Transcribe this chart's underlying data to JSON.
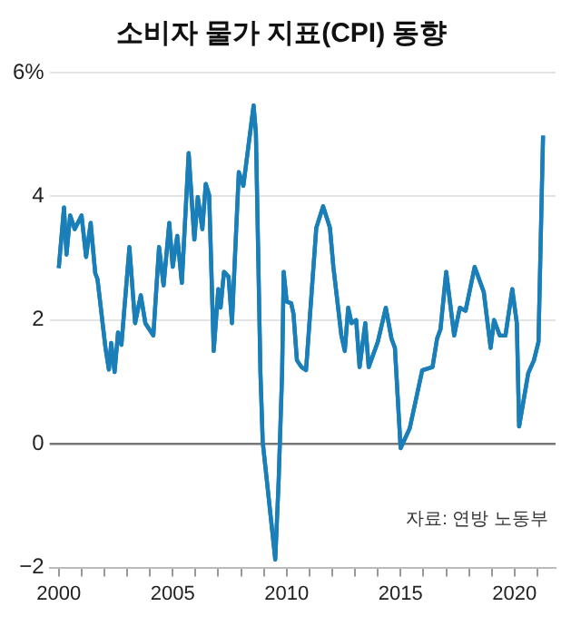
{
  "chart_data": {
    "type": "line",
    "title": "소비자 물가 지표(CPI) 동향",
    "x": [
      2000.0,
      2000.23,
      2000.34,
      2000.5,
      2000.7,
      2001.0,
      2001.2,
      2001.4,
      2001.6,
      2001.7,
      2002.05,
      2002.2,
      2002.3,
      2002.45,
      2002.6,
      2002.75,
      2003.1,
      2003.35,
      2003.6,
      2003.8,
      2004.15,
      2004.4,
      2004.6,
      2004.85,
      2005.0,
      2005.2,
      2005.4,
      2005.7,
      2005.95,
      2006.1,
      2006.3,
      2006.45,
      2006.6,
      2006.8,
      2007.0,
      2007.1,
      2007.25,
      2007.45,
      2007.6,
      2007.9,
      2008.1,
      2008.55,
      2008.65,
      2008.85,
      2008.95,
      2009.5,
      2009.65,
      2009.8,
      2009.87,
      2010.0,
      2010.2,
      2010.3,
      2010.45,
      2010.65,
      2010.85,
      2011.3,
      2011.6,
      2011.9,
      2012.05,
      2012.4,
      2012.55,
      2012.7,
      2012.85,
      2013.05,
      2013.2,
      2013.45,
      2013.6,
      2014.0,
      2014.35,
      2014.6,
      2014.75,
      2015.0,
      2015.4,
      2015.95,
      2016.4,
      2016.6,
      2016.75,
      2017.0,
      2017.35,
      2017.6,
      2017.85,
      2018.25,
      2018.65,
      2018.95,
      2019.1,
      2019.35,
      2019.6,
      2019.9,
      2020.1,
      2020.2,
      2020.6,
      2020.85,
      2021.05,
      2021.25
    ],
    "series": [
      {
        "color": "#1a7fb8",
        "values": [
          2.84,
          3.82,
          3.06,
          3.69,
          3.47,
          3.69,
          3.02,
          3.57,
          2.76,
          2.66,
          1.55,
          1.2,
          1.63,
          1.16,
          1.8,
          1.6,
          3.18,
          1.95,
          2.4,
          1.95,
          1.75,
          3.18,
          2.56,
          3.57,
          2.86,
          3.36,
          2.6,
          4.7,
          3.3,
          3.99,
          3.47,
          4.2,
          4.02,
          1.5,
          2.5,
          2.2,
          2.78,
          2.7,
          1.95,
          4.39,
          4.17,
          5.47,
          5.03,
          1.14,
          0.03,
          -1.87,
          -0.58,
          1.14,
          2.78,
          2.3,
          2.27,
          2.1,
          1.35,
          1.24,
          1.19,
          3.49,
          3.84,
          3.49,
          2.86,
          1.75,
          1.5,
          2.2,
          1.95,
          2.0,
          1.24,
          1.95,
          1.24,
          1.65,
          2.2,
          1.7,
          1.55,
          -0.07,
          0.25,
          1.19,
          1.24,
          1.7,
          1.85,
          2.78,
          1.75,
          2.2,
          2.15,
          2.86,
          2.45,
          1.55,
          2.0,
          1.75,
          1.75,
          2.5,
          1.95,
          0.28,
          1.14,
          1.35,
          1.65,
          4.98
        ]
      }
    ],
    "xlim": [
      1999.6,
      2021.8
    ],
    "xticks": [
      2000,
      {
        "value": 2001,
        "label": null
      },
      {
        "value": 2002,
        "label": null
      },
      {
        "value": 2003,
        "label": null
      },
      {
        "value": 2004,
        "label": null
      },
      2005,
      {
        "value": 2006,
        "label": null
      },
      {
        "value": 2007,
        "label": null
      },
      {
        "value": 2008,
        "label": null
      },
      {
        "value": 2009,
        "label": null
      },
      2010,
      {
        "value": 2011,
        "label": null
      },
      {
        "value": 2012,
        "label": null
      },
      {
        "value": 2013,
        "label": null
      },
      {
        "value": 2014,
        "label": null
      },
      2015,
      {
        "value": 2016,
        "label": null
      },
      {
        "value": 2017,
        "label": null
      },
      {
        "value": 2018,
        "label": null
      },
      {
        "value": 2019,
        "label": null
      },
      2020,
      {
        "value": 2021,
        "label": null
      }
    ],
    "ylim": [
      -2,
      6
    ],
    "yticks": [
      {
        "value": -2,
        "label": "−2"
      },
      0,
      2,
      4,
      {
        "value": 6,
        "label": "6%"
      }
    ],
    "grid": "y",
    "marker": "none",
    "line_style": "solid",
    "legend": false,
    "ref_lines": [
      {
        "axis": "y",
        "value": 0,
        "color": "#777777"
      }
    ],
    "annotations": [
      "자료: 연방 노동부"
    ]
  }
}
